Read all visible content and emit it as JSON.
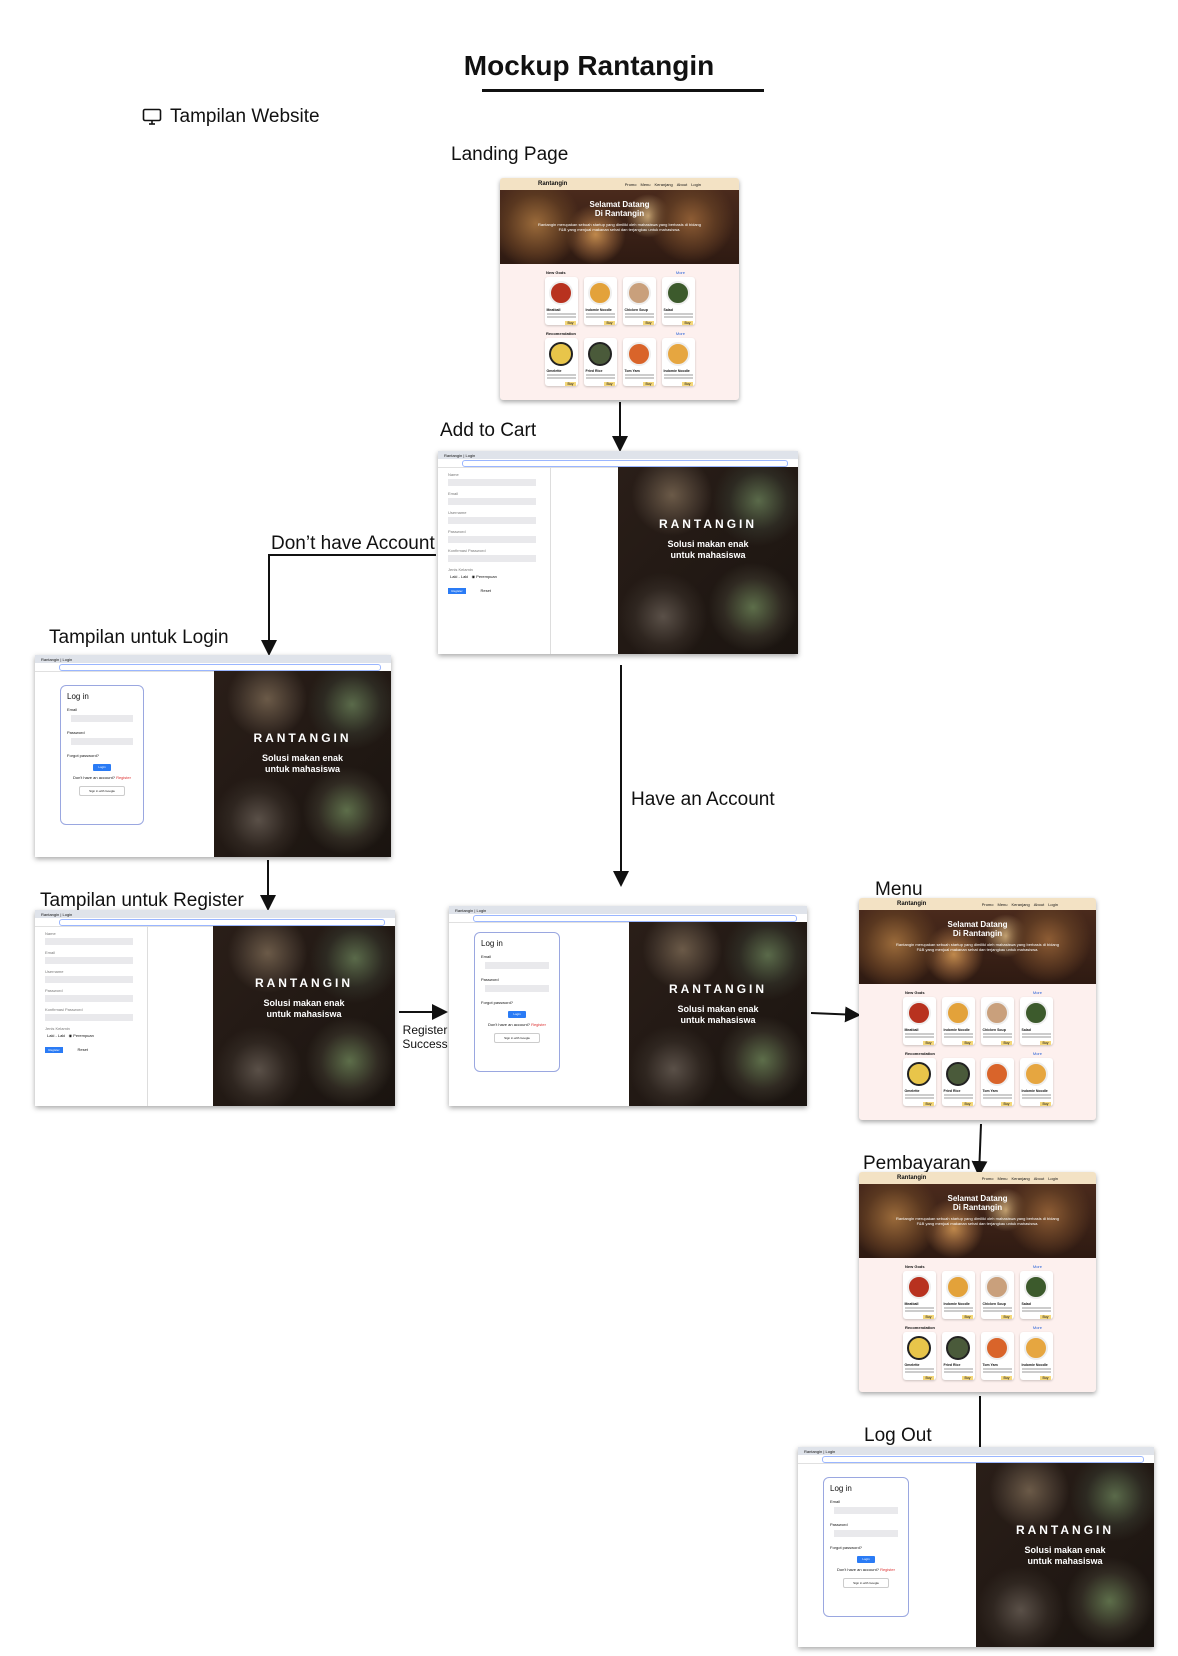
{
  "title": "Mockup Rantangin",
  "section_label": "Tampilan Website",
  "steps": {
    "landing": "Landing Page",
    "add_to_cart": "Add to Cart",
    "dont_have_account": "Don’t have Account",
    "login_view": "Tampilan untuk Login",
    "register_view": "Tampilan untuk Register",
    "have_account": "Have an Account",
    "register_success": "Register\nSuccess",
    "menu": "Menu",
    "pembayaran": "Pembayaran",
    "log_out": "Log Out"
  },
  "mockup": {
    "brand": "Rantangin",
    "nav_links": [
      "Promo",
      "Menu",
      "Keranjang",
      "About",
      "Login"
    ],
    "hero_title_1": "Selamat Datang",
    "hero_title_2": "Di Rantangin",
    "hero_desc": "Rantangin merupakan sebuah startup yang dimiliki oleh mahasiswa yang berbasis di bidang F&B yang menjual makanan sehat dan terjangkau untuk mahasiswa.",
    "section_new": "New Gods",
    "section_reco": "Recomendation",
    "more": "More",
    "new_items": [
      "Meatball",
      "Indomie Noodle",
      "Chicken Soup",
      "Salad"
    ],
    "reco_items": [
      "Omelette",
      "Fried Rice",
      "Tom Yam",
      "Indomie Noodle"
    ],
    "buy": "Buy",
    "tab_title": "Rantangin | Login",
    "photo_logo": "RANTANGIN",
    "photo_sub_1": "Solusi makan enak",
    "photo_sub_2": "untuk mahasiswa",
    "login_heading": "Log in",
    "email": "Email",
    "password": "Password",
    "forgot": "Forgot password?",
    "login_btn": "Login",
    "no_account": "Don't have an account?",
    "register_link": "Register",
    "google": "Sign in with Google",
    "reg_fields": [
      "Name",
      "Email",
      "Username",
      "Password",
      "Konfirmasi Password"
    ],
    "gender_label": "Jenis Kelamin",
    "gender_options": [
      "Laki - Laki",
      "Perempuan"
    ],
    "register_btn": "Register",
    "reset_btn": "Reset"
  },
  "colors": {
    "accent": "#2a7bf5",
    "nav": "#f3e2c4",
    "page_bg": "#fdf0ee"
  }
}
